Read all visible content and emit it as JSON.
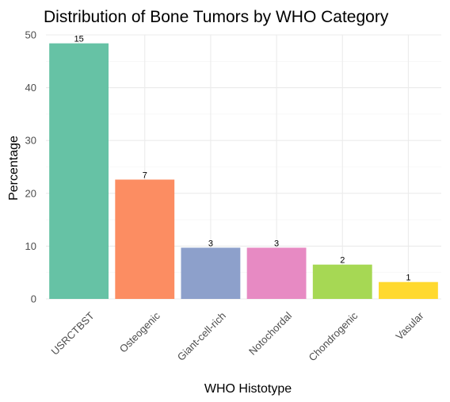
{
  "chart_data": {
    "type": "bar",
    "title": "Distribution of Bone Tumors by WHO Category",
    "xlabel": "WHO Histotype",
    "ylabel": "Percentage",
    "categories": [
      "USRCTBST",
      "Osteogenic",
      "Giant-cell-rich",
      "Notochordal",
      "Chondrogenic",
      "Vasular"
    ],
    "values": [
      48.4,
      22.6,
      9.7,
      9.7,
      6.5,
      3.2
    ],
    "data_labels": [
      "15",
      "7",
      "3",
      "3",
      "2",
      "1"
    ],
    "colors": [
      "#66c2a5",
      "#fc8d62",
      "#8da0cb",
      "#e78ac3",
      "#a6d854",
      "#ffd92f"
    ],
    "ylim": [
      0,
      50
    ],
    "yticks": [
      "0",
      "10",
      "20",
      "30",
      "40",
      "50"
    ],
    "grid": true,
    "legend": "none"
  }
}
